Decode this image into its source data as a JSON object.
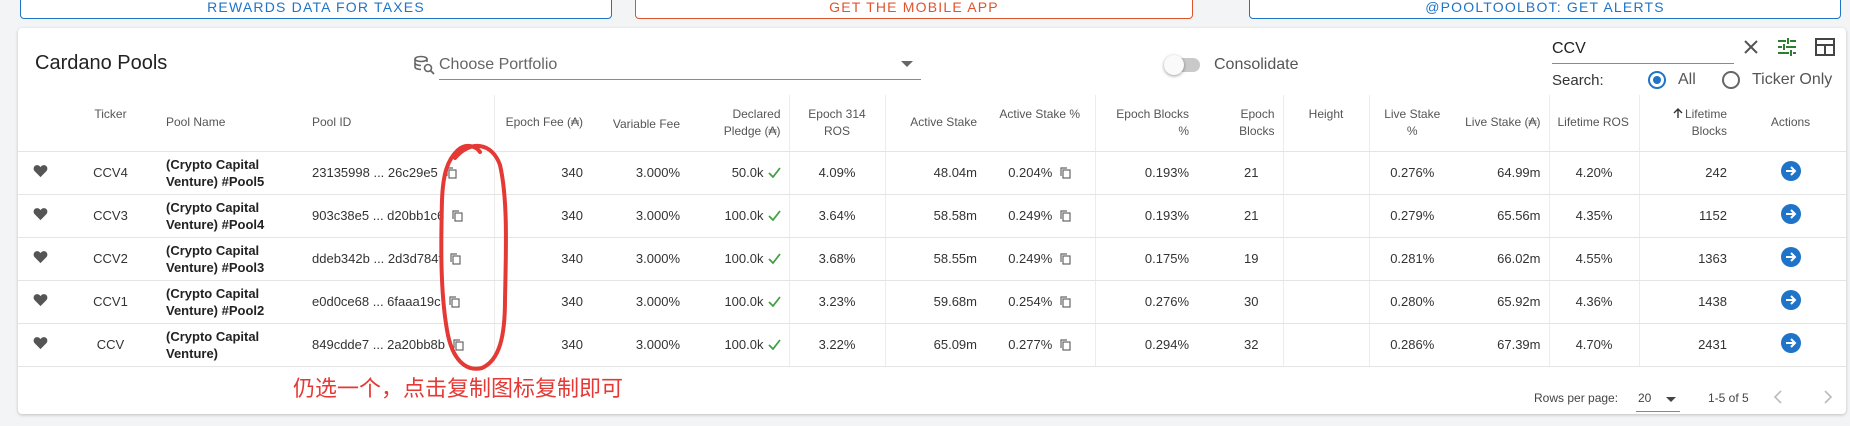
{
  "top_buttons": [
    {
      "label": "Rewards data for taxes"
    },
    {
      "label": "Get the mobile app"
    },
    {
      "label": "@pooltoolbot: get alerts"
    }
  ],
  "colors": {
    "accent": "#1f74c8",
    "orange": "#e0542b",
    "check": "#43a047",
    "annotation": "#e53935"
  },
  "header": {
    "title": "Cardano Pools",
    "portfolio_placeholder": "Choose Portfolio",
    "consolidate_label": "Consolidate",
    "consolidate_on": false
  },
  "search": {
    "value": "CCV",
    "label": "Search:",
    "options": [
      {
        "label": "All",
        "selected": true
      },
      {
        "label": "Ticker Only",
        "selected": false
      }
    ]
  },
  "table": {
    "columns": {
      "ticker": "Ticker",
      "pool_name": "Pool Name",
      "pool_id": "Pool ID",
      "epoch_fee": "Epoch Fee (₳)",
      "variable_fee": "Variable Fee",
      "declared_pledge": "Declared Pledge (₳)",
      "epoch_ros": "Epoch 314 ROS",
      "active_stake": "Active Stake",
      "active_stake_pct": "Active Stake %",
      "epoch_blocks_pct": "Epoch Blocks %",
      "epoch_blocks": "Epoch Blocks",
      "height": "Height",
      "live_stake_pct": "Live Stake %",
      "live_stake": "Live Stake (₳)",
      "lifetime_ros": "Lifetime ROS",
      "lifetime_blocks": "Lifetime Blocks",
      "actions": "Actions"
    },
    "rows": [
      {
        "ticker": "CCV4",
        "name": "(Crypto Capital Venture) #Pool5",
        "pool_id": "23135998 ... 26c29e5",
        "epoch_fee": "340",
        "variable_fee": "3.000%",
        "pledge": "50.0k",
        "ros": "4.09%",
        "active_stake": "48.04m",
        "active_stake_pct": "0.204%",
        "epoch_blocks_pct": "0.193%",
        "epoch_blocks": "21",
        "height": "",
        "live_stake_pct": "0.276%",
        "live_stake": "64.99m",
        "lifetime_ros": "4.20%",
        "lifetime_blocks": "242"
      },
      {
        "ticker": "CCV3",
        "name": "(Crypto Capital Venture) #Pool4",
        "pool_id": "903c38e5 ... d20bb1c6",
        "epoch_fee": "340",
        "variable_fee": "3.000%",
        "pledge": "100.0k",
        "ros": "3.64%",
        "active_stake": "58.58m",
        "active_stake_pct": "0.249%",
        "epoch_blocks_pct": "0.193%",
        "epoch_blocks": "21",
        "height": "",
        "live_stake_pct": "0.279%",
        "live_stake": "65.56m",
        "lifetime_ros": "4.35%",
        "lifetime_blocks": "1152"
      },
      {
        "ticker": "CCV2",
        "name": "(Crypto Capital Venture) #Pool3",
        "pool_id": "ddeb342b ... 2d3d784f",
        "epoch_fee": "340",
        "variable_fee": "3.000%",
        "pledge": "100.0k",
        "ros": "3.68%",
        "active_stake": "58.55m",
        "active_stake_pct": "0.249%",
        "epoch_blocks_pct": "0.175%",
        "epoch_blocks": "19",
        "height": "",
        "live_stake_pct": "0.281%",
        "live_stake": "66.02m",
        "lifetime_ros": "4.55%",
        "lifetime_blocks": "1363"
      },
      {
        "ticker": "CCV1",
        "name": "(Crypto Capital Venture) #Pool2",
        "pool_id": "e0d0ce68 ... 6faaa19c",
        "epoch_fee": "340",
        "variable_fee": "3.000%",
        "pledge": "100.0k",
        "ros": "3.23%",
        "active_stake": "59.68m",
        "active_stake_pct": "0.254%",
        "epoch_blocks_pct": "0.276%",
        "epoch_blocks": "30",
        "height": "",
        "live_stake_pct": "0.280%",
        "live_stake": "65.92m",
        "lifetime_ros": "4.36%",
        "lifetime_blocks": "1438"
      },
      {
        "ticker": "CCV",
        "name": "(Crypto Capital Venture)",
        "pool_id": "849cdde7 ... 2a20bb8b",
        "epoch_fee": "340",
        "variable_fee": "3.000%",
        "pledge": "100.0k",
        "ros": "3.22%",
        "active_stake": "65.09m",
        "active_stake_pct": "0.277%",
        "epoch_blocks_pct": "0.294%",
        "epoch_blocks": "32",
        "height": "",
        "live_stake_pct": "0.286%",
        "live_stake": "67.39m",
        "lifetime_ros": "4.70%",
        "lifetime_blocks": "2431"
      }
    ]
  },
  "footer": {
    "rows_per_page_label": "Rows per page:",
    "rows_per_page_value": "20",
    "range": "1-5 of 5"
  },
  "annotation": {
    "text": "仍选一个，点击复制图标复制即可"
  }
}
